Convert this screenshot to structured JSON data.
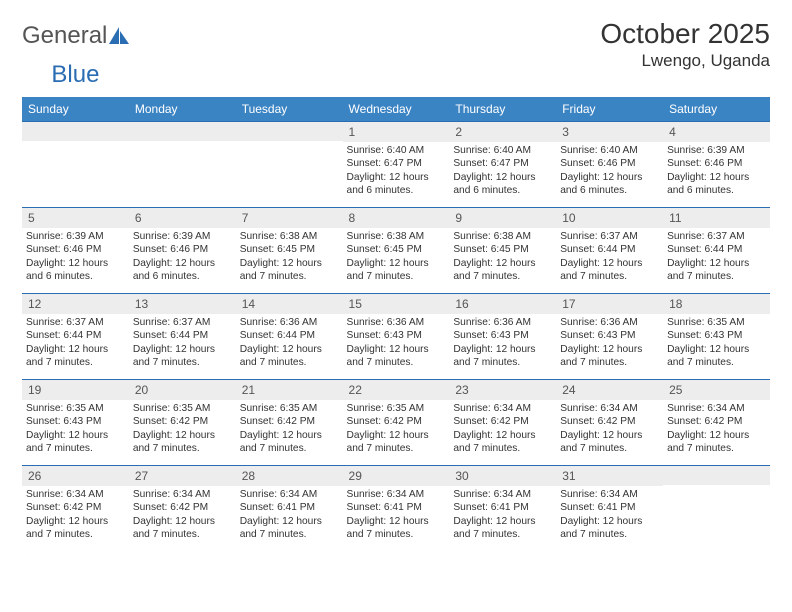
{
  "brand": {
    "part1": "General",
    "part2": "Blue"
  },
  "title": "October 2025",
  "location": "Lwengo, Uganda",
  "colors": {
    "header_bg": "#3b84c4",
    "border": "#2a6db3",
    "daynum_bg": "#ededed"
  },
  "weekdays": [
    "Sunday",
    "Monday",
    "Tuesday",
    "Wednesday",
    "Thursday",
    "Friday",
    "Saturday"
  ],
  "weeks": [
    [
      {
        "n": "",
        "sr": "",
        "ss": "",
        "d": ""
      },
      {
        "n": "",
        "sr": "",
        "ss": "",
        "d": ""
      },
      {
        "n": "",
        "sr": "",
        "ss": "",
        "d": ""
      },
      {
        "n": "1",
        "sr": "Sunrise: 6:40 AM",
        "ss": "Sunset: 6:47 PM",
        "d": "Daylight: 12 hours and 6 minutes."
      },
      {
        "n": "2",
        "sr": "Sunrise: 6:40 AM",
        "ss": "Sunset: 6:47 PM",
        "d": "Daylight: 12 hours and 6 minutes."
      },
      {
        "n": "3",
        "sr": "Sunrise: 6:40 AM",
        "ss": "Sunset: 6:46 PM",
        "d": "Daylight: 12 hours and 6 minutes."
      },
      {
        "n": "4",
        "sr": "Sunrise: 6:39 AM",
        "ss": "Sunset: 6:46 PM",
        "d": "Daylight: 12 hours and 6 minutes."
      }
    ],
    [
      {
        "n": "5",
        "sr": "Sunrise: 6:39 AM",
        "ss": "Sunset: 6:46 PM",
        "d": "Daylight: 12 hours and 6 minutes."
      },
      {
        "n": "6",
        "sr": "Sunrise: 6:39 AM",
        "ss": "Sunset: 6:46 PM",
        "d": "Daylight: 12 hours and 6 minutes."
      },
      {
        "n": "7",
        "sr": "Sunrise: 6:38 AM",
        "ss": "Sunset: 6:45 PM",
        "d": "Daylight: 12 hours and 7 minutes."
      },
      {
        "n": "8",
        "sr": "Sunrise: 6:38 AM",
        "ss": "Sunset: 6:45 PM",
        "d": "Daylight: 12 hours and 7 minutes."
      },
      {
        "n": "9",
        "sr": "Sunrise: 6:38 AM",
        "ss": "Sunset: 6:45 PM",
        "d": "Daylight: 12 hours and 7 minutes."
      },
      {
        "n": "10",
        "sr": "Sunrise: 6:37 AM",
        "ss": "Sunset: 6:44 PM",
        "d": "Daylight: 12 hours and 7 minutes."
      },
      {
        "n": "11",
        "sr": "Sunrise: 6:37 AM",
        "ss": "Sunset: 6:44 PM",
        "d": "Daylight: 12 hours and 7 minutes."
      }
    ],
    [
      {
        "n": "12",
        "sr": "Sunrise: 6:37 AM",
        "ss": "Sunset: 6:44 PM",
        "d": "Daylight: 12 hours and 7 minutes."
      },
      {
        "n": "13",
        "sr": "Sunrise: 6:37 AM",
        "ss": "Sunset: 6:44 PM",
        "d": "Daylight: 12 hours and 7 minutes."
      },
      {
        "n": "14",
        "sr": "Sunrise: 6:36 AM",
        "ss": "Sunset: 6:44 PM",
        "d": "Daylight: 12 hours and 7 minutes."
      },
      {
        "n": "15",
        "sr": "Sunrise: 6:36 AM",
        "ss": "Sunset: 6:43 PM",
        "d": "Daylight: 12 hours and 7 minutes."
      },
      {
        "n": "16",
        "sr": "Sunrise: 6:36 AM",
        "ss": "Sunset: 6:43 PM",
        "d": "Daylight: 12 hours and 7 minutes."
      },
      {
        "n": "17",
        "sr": "Sunrise: 6:36 AM",
        "ss": "Sunset: 6:43 PM",
        "d": "Daylight: 12 hours and 7 minutes."
      },
      {
        "n": "18",
        "sr": "Sunrise: 6:35 AM",
        "ss": "Sunset: 6:43 PM",
        "d": "Daylight: 12 hours and 7 minutes."
      }
    ],
    [
      {
        "n": "19",
        "sr": "Sunrise: 6:35 AM",
        "ss": "Sunset: 6:43 PM",
        "d": "Daylight: 12 hours and 7 minutes."
      },
      {
        "n": "20",
        "sr": "Sunrise: 6:35 AM",
        "ss": "Sunset: 6:42 PM",
        "d": "Daylight: 12 hours and 7 minutes."
      },
      {
        "n": "21",
        "sr": "Sunrise: 6:35 AM",
        "ss": "Sunset: 6:42 PM",
        "d": "Daylight: 12 hours and 7 minutes."
      },
      {
        "n": "22",
        "sr": "Sunrise: 6:35 AM",
        "ss": "Sunset: 6:42 PM",
        "d": "Daylight: 12 hours and 7 minutes."
      },
      {
        "n": "23",
        "sr": "Sunrise: 6:34 AM",
        "ss": "Sunset: 6:42 PM",
        "d": "Daylight: 12 hours and 7 minutes."
      },
      {
        "n": "24",
        "sr": "Sunrise: 6:34 AM",
        "ss": "Sunset: 6:42 PM",
        "d": "Daylight: 12 hours and 7 minutes."
      },
      {
        "n": "25",
        "sr": "Sunrise: 6:34 AM",
        "ss": "Sunset: 6:42 PM",
        "d": "Daylight: 12 hours and 7 minutes."
      }
    ],
    [
      {
        "n": "26",
        "sr": "Sunrise: 6:34 AM",
        "ss": "Sunset: 6:42 PM",
        "d": "Daylight: 12 hours and 7 minutes."
      },
      {
        "n": "27",
        "sr": "Sunrise: 6:34 AM",
        "ss": "Sunset: 6:42 PM",
        "d": "Daylight: 12 hours and 7 minutes."
      },
      {
        "n": "28",
        "sr": "Sunrise: 6:34 AM",
        "ss": "Sunset: 6:41 PM",
        "d": "Daylight: 12 hours and 7 minutes."
      },
      {
        "n": "29",
        "sr": "Sunrise: 6:34 AM",
        "ss": "Sunset: 6:41 PM",
        "d": "Daylight: 12 hours and 7 minutes."
      },
      {
        "n": "30",
        "sr": "Sunrise: 6:34 AM",
        "ss": "Sunset: 6:41 PM",
        "d": "Daylight: 12 hours and 7 minutes."
      },
      {
        "n": "31",
        "sr": "Sunrise: 6:34 AM",
        "ss": "Sunset: 6:41 PM",
        "d": "Daylight: 12 hours and 7 minutes."
      },
      {
        "n": "",
        "sr": "",
        "ss": "",
        "d": ""
      }
    ]
  ]
}
